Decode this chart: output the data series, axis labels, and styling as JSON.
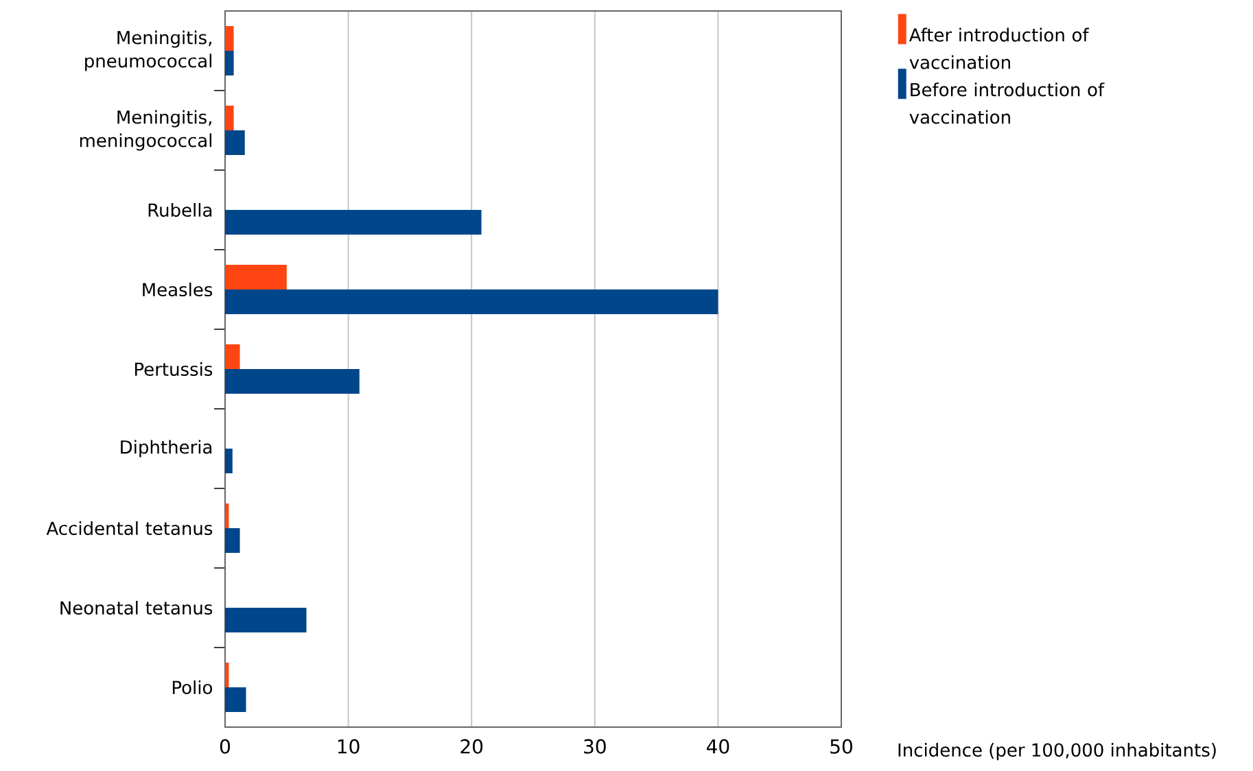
{
  "chart_data": {
    "type": "bar",
    "orientation": "horizontal",
    "xlabel": "Incidence (per 100,000 inhabitants)",
    "categories": [
      "Meningitis, pneumococcal",
      "Meningitis, meningococcal",
      "Rubella",
      "Measles",
      "Pertussis",
      "Diphtheria",
      "Accidental tetanus",
      "Neonatal tetanus",
      "Polio"
    ],
    "series": [
      {
        "name": "After introduction of vaccination",
        "color": "#ff4612",
        "values": [
          0.7,
          0.7,
          null,
          5.0,
          1.2,
          null,
          0.3,
          null,
          0.3
        ]
      },
      {
        "name": "Before introduction of vaccination",
        "color": "#00468b",
        "values": [
          0.7,
          1.6,
          20.8,
          40,
          10.9,
          0.6,
          1.2,
          6.6,
          1.7
        ]
      }
    ],
    "xlim": [
      0,
      50
    ],
    "xticks": [
      0,
      10,
      20,
      30,
      40,
      50
    ],
    "grid": "x",
    "legend": "top right"
  }
}
